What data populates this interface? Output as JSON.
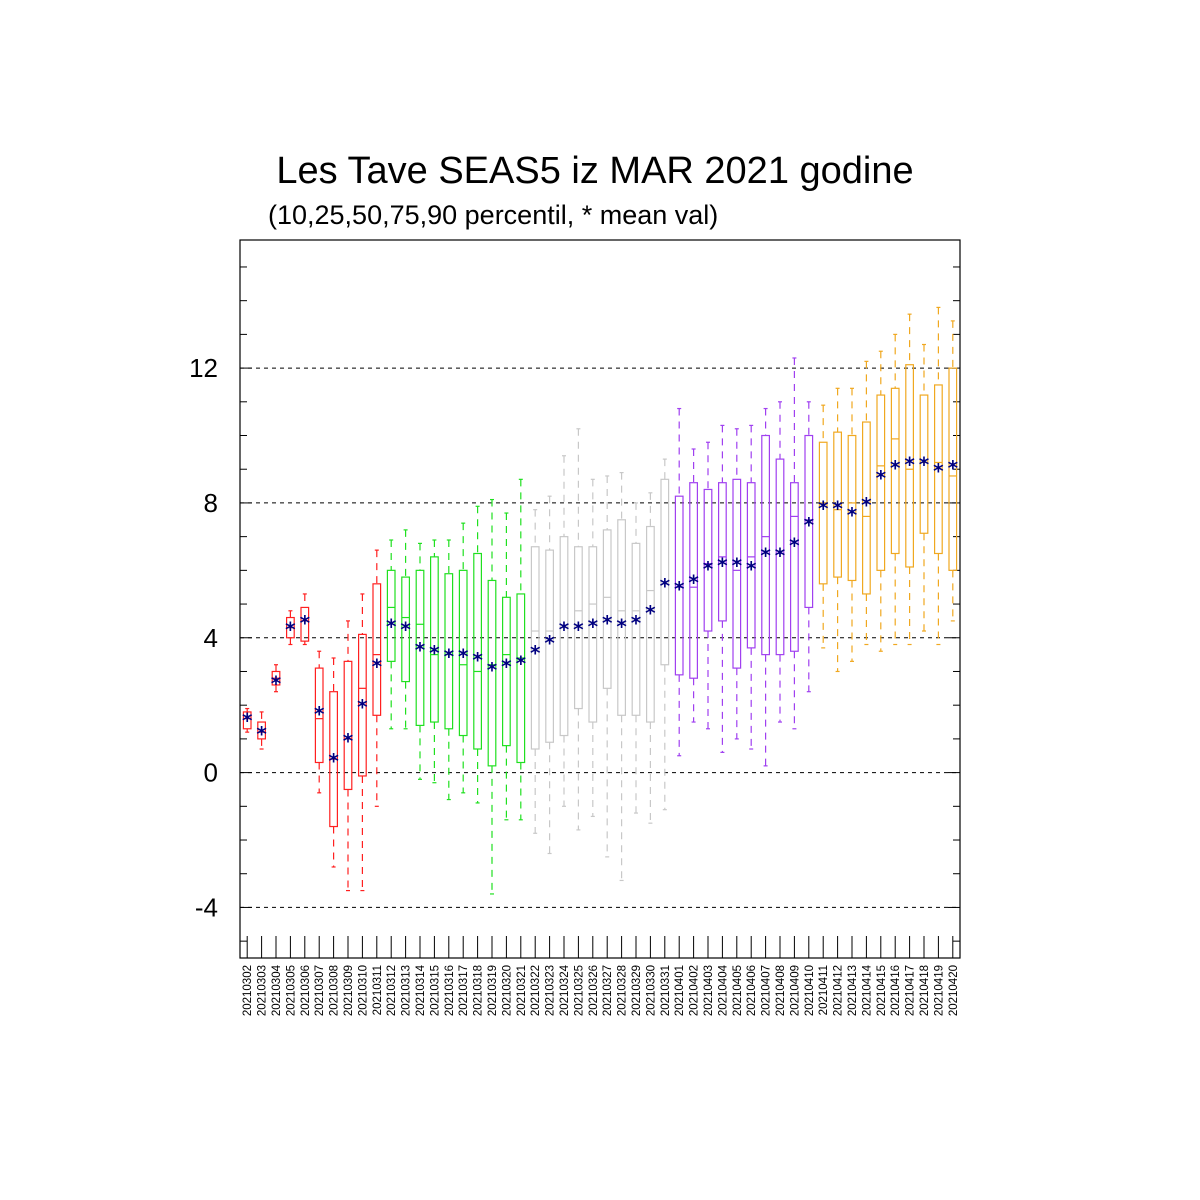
{
  "chart_data": {
    "type": "box",
    "title": "Les Tave SEAS5 iz MAR 2021 godine",
    "subtitle": "(10,25,50,75,90 percentil, * mean val)",
    "xlabel": "",
    "ylabel": "",
    "ylim": [
      -5.5,
      15.8
    ],
    "yticks": [
      -4,
      0,
      4,
      8,
      12
    ],
    "grid": "horizontal dashed at major ticks",
    "colors": {
      "red": "#ff2020",
      "green": "#20e020",
      "gray": "#c8c8c8",
      "purple": "#a040f0",
      "orange": "#f0a820",
      "mean_marker": "#000080"
    },
    "categories": [
      "20210302",
      "20210303",
      "20210304",
      "20210305",
      "20210306",
      "20210307",
      "20210308",
      "20210309",
      "20210310",
      "20210311",
      "20210312",
      "20210313",
      "20210314",
      "20210315",
      "20210316",
      "20210317",
      "20210318",
      "20210319",
      "20210320",
      "20210321",
      "20210322",
      "20210323",
      "20210324",
      "20210325",
      "20210326",
      "20210327",
      "20210328",
      "20210329",
      "20210330",
      "20210331",
      "20210401",
      "20210402",
      "20210403",
      "20210404",
      "20210405",
      "20210406",
      "20210407",
      "20210408",
      "20210409",
      "20210410",
      "20210411",
      "20210412",
      "20210413",
      "20210414",
      "20210415",
      "20210416",
      "20210417",
      "20210418",
      "20210419",
      "20210420"
    ],
    "boxes": [
      {
        "date": "20210302",
        "p10": 1.2,
        "p25": 1.3,
        "p50": 1.6,
        "p75": 1.8,
        "p90": 1.9,
        "mean": 1.6,
        "color": "red"
      },
      {
        "date": "20210303",
        "p10": 0.7,
        "p25": 1.0,
        "p50": 1.2,
        "p75": 1.5,
        "p90": 1.8,
        "mean": 1.2,
        "color": "red"
      },
      {
        "date": "20210304",
        "p10": 2.4,
        "p25": 2.6,
        "p50": 2.8,
        "p75": 3.0,
        "p90": 3.2,
        "mean": 2.7,
        "color": "red"
      },
      {
        "date": "20210305",
        "p10": 3.8,
        "p25": 4.0,
        "p50": 4.3,
        "p75": 4.6,
        "p90": 4.8,
        "mean": 4.3,
        "color": "red"
      },
      {
        "date": "20210306",
        "p10": 3.8,
        "p25": 3.9,
        "p50": 4.5,
        "p75": 4.9,
        "p90": 5.3,
        "mean": 4.5,
        "color": "red"
      },
      {
        "date": "20210307",
        "p10": -0.6,
        "p25": 0.3,
        "p50": 1.6,
        "p75": 3.1,
        "p90": 3.6,
        "mean": 1.8,
        "color": "red"
      },
      {
        "date": "20210308",
        "p10": -2.8,
        "p25": -1.6,
        "p50": 0.4,
        "p75": 2.4,
        "p90": 3.4,
        "mean": 0.4,
        "color": "red"
      },
      {
        "date": "20210309",
        "p10": -3.5,
        "p25": -0.5,
        "p50": 1.0,
        "p75": 3.3,
        "p90": 4.5,
        "mean": 1.0,
        "color": "red"
      },
      {
        "date": "20210310",
        "p10": -3.5,
        "p25": -0.1,
        "p50": 2.5,
        "p75": 4.1,
        "p90": 5.3,
        "mean": 2.0,
        "color": "red"
      },
      {
        "date": "20210311",
        "p10": -1.0,
        "p25": 1.7,
        "p50": 3.5,
        "p75": 5.6,
        "p90": 6.6,
        "mean": 3.2,
        "color": "red"
      },
      {
        "date": "20210312",
        "p10": 1.3,
        "p25": 3.3,
        "p50": 4.9,
        "p75": 6.0,
        "p90": 6.9,
        "mean": 4.4,
        "color": "green"
      },
      {
        "date": "20210313",
        "p10": 1.3,
        "p25": 2.7,
        "p50": 4.6,
        "p75": 5.8,
        "p90": 7.2,
        "mean": 4.3,
        "color": "green"
      },
      {
        "date": "20210314",
        "p10": -0.2,
        "p25": 1.4,
        "p50": 4.4,
        "p75": 6.0,
        "p90": 6.8,
        "mean": 3.7,
        "color": "green"
      },
      {
        "date": "20210315",
        "p10": -0.3,
        "p25": 1.5,
        "p50": 3.5,
        "p75": 6.4,
        "p90": 6.9,
        "mean": 3.6,
        "color": "green"
      },
      {
        "date": "20210316",
        "p10": -0.8,
        "p25": 1.3,
        "p50": 3.5,
        "p75": 5.9,
        "p90": 6.9,
        "mean": 3.5,
        "color": "green"
      },
      {
        "date": "20210317",
        "p10": -0.6,
        "p25": 1.1,
        "p50": 3.2,
        "p75": 6.0,
        "p90": 7.4,
        "mean": 3.5,
        "color": "green"
      },
      {
        "date": "20210318",
        "p10": -0.9,
        "p25": 0.7,
        "p50": 3.0,
        "p75": 6.5,
        "p90": 7.9,
        "mean": 3.4,
        "color": "green"
      },
      {
        "date": "20210319",
        "p10": -3.6,
        "p25": 0.2,
        "p50": 3.2,
        "p75": 5.7,
        "p90": 8.1,
        "mean": 3.1,
        "color": "green"
      },
      {
        "date": "20210320",
        "p10": -1.4,
        "p25": 0.8,
        "p50": 3.5,
        "p75": 5.2,
        "p90": 7.7,
        "mean": 3.2,
        "color": "green"
      },
      {
        "date": "20210321",
        "p10": -1.4,
        "p25": 0.3,
        "p50": 3.4,
        "p75": 5.3,
        "p90": 8.7,
        "mean": 3.3,
        "color": "green"
      },
      {
        "date": "20210322",
        "p10": -1.8,
        "p25": 0.7,
        "p50": 4.2,
        "p75": 6.7,
        "p90": 7.8,
        "mean": 3.6,
        "color": "gray"
      },
      {
        "date": "20210323",
        "p10": -2.4,
        "p25": 0.9,
        "p50": 4.2,
        "p75": 6.6,
        "p90": 8.2,
        "mean": 3.9,
        "color": "gray"
      },
      {
        "date": "20210324",
        "p10": -1.0,
        "p25": 1.1,
        "p50": 4.3,
        "p75": 7.0,
        "p90": 9.4,
        "mean": 4.3,
        "color": "gray"
      },
      {
        "date": "20210325",
        "p10": -1.7,
        "p25": 1.9,
        "p50": 4.8,
        "p75": 6.7,
        "p90": 10.2,
        "mean": 4.3,
        "color": "gray"
      },
      {
        "date": "20210326",
        "p10": -1.3,
        "p25": 1.5,
        "p50": 5.0,
        "p75": 6.7,
        "p90": 8.7,
        "mean": 4.4,
        "color": "gray"
      },
      {
        "date": "20210327",
        "p10": -2.5,
        "p25": 2.5,
        "p50": 5.2,
        "p75": 7.2,
        "p90": 8.8,
        "mean": 4.5,
        "color": "gray"
      },
      {
        "date": "20210328",
        "p10": -3.2,
        "p25": 1.7,
        "p50": 4.8,
        "p75": 7.5,
        "p90": 8.9,
        "mean": 4.4,
        "color": "gray"
      },
      {
        "date": "20210329",
        "p10": -1.2,
        "p25": 1.7,
        "p50": 4.8,
        "p75": 6.8,
        "p90": 8.0,
        "mean": 4.5,
        "color": "gray"
      },
      {
        "date": "20210330",
        "p10": -1.5,
        "p25": 1.5,
        "p50": 5.4,
        "p75": 7.3,
        "p90": 8.3,
        "mean": 4.8,
        "color": "gray"
      },
      {
        "date": "20210331",
        "p10": -1.1,
        "p25": 3.2,
        "p50": 5.6,
        "p75": 8.7,
        "p90": 9.3,
        "mean": 5.6,
        "color": "gray"
      },
      {
        "date": "20210401",
        "p10": 0.5,
        "p25": 2.9,
        "p50": 5.5,
        "p75": 8.2,
        "p90": 10.8,
        "mean": 5.5,
        "color": "purple"
      },
      {
        "date": "20210402",
        "p10": 1.5,
        "p25": 2.8,
        "p50": 5.5,
        "p75": 8.6,
        "p90": 9.6,
        "mean": 5.7,
        "color": "purple"
      },
      {
        "date": "20210403",
        "p10": 1.3,
        "p25": 4.2,
        "p50": 6.2,
        "p75": 8.4,
        "p90": 9.8,
        "mean": 6.1,
        "color": "purple"
      },
      {
        "date": "20210404",
        "p10": 0.6,
        "p25": 4.5,
        "p50": 6.4,
        "p75": 8.6,
        "p90": 10.3,
        "mean": 6.2,
        "color": "purple"
      },
      {
        "date": "20210405",
        "p10": 1.0,
        "p25": 3.1,
        "p50": 6.0,
        "p75": 8.7,
        "p90": 10.2,
        "mean": 6.2,
        "color": "purple"
      },
      {
        "date": "20210406",
        "p10": 0.7,
        "p25": 3.7,
        "p50": 6.4,
        "p75": 8.6,
        "p90": 10.3,
        "mean": 6.1,
        "color": "purple"
      },
      {
        "date": "20210407",
        "p10": 0.2,
        "p25": 3.5,
        "p50": 7.0,
        "p75": 10.0,
        "p90": 10.8,
        "mean": 6.5,
        "color": "purple"
      },
      {
        "date": "20210408",
        "p10": 1.5,
        "p25": 3.5,
        "p50": 6.5,
        "p75": 9.3,
        "p90": 11.0,
        "mean": 6.5,
        "color": "purple"
      },
      {
        "date": "20210409",
        "p10": 1.3,
        "p25": 3.6,
        "p50": 7.6,
        "p75": 8.6,
        "p90": 12.3,
        "mean": 6.8,
        "color": "purple"
      },
      {
        "date": "20210410",
        "p10": 2.4,
        "p25": 4.9,
        "p50": 7.5,
        "p75": 10.0,
        "p90": 11.0,
        "mean": 7.4,
        "color": "purple"
      },
      {
        "date": "20210411",
        "p10": 3.7,
        "p25": 5.6,
        "p50": 8.0,
        "p75": 9.8,
        "p90": 10.9,
        "mean": 7.9,
        "color": "orange"
      },
      {
        "date": "20210412",
        "p10": 3.0,
        "p25": 5.8,
        "p50": 7.8,
        "p75": 10.1,
        "p90": 11.4,
        "mean": 7.9,
        "color": "orange"
      },
      {
        "date": "20210413",
        "p10": 3.3,
        "p25": 5.7,
        "p50": 8.0,
        "p75": 10.0,
        "p90": 11.4,
        "mean": 7.7,
        "color": "orange"
      },
      {
        "date": "20210414",
        "p10": 3.8,
        "p25": 5.3,
        "p50": 7.6,
        "p75": 10.4,
        "p90": 12.2,
        "mean": 8.0,
        "color": "orange"
      },
      {
        "date": "20210415",
        "p10": 3.6,
        "p25": 6.0,
        "p50": 9.1,
        "p75": 11.2,
        "p90": 12.5,
        "mean": 8.8,
        "color": "orange"
      },
      {
        "date": "20210416",
        "p10": 3.8,
        "p25": 6.5,
        "p50": 9.9,
        "p75": 11.4,
        "p90": 13.0,
        "mean": 9.1,
        "color": "orange"
      },
      {
        "date": "20210417",
        "p10": 3.8,
        "p25": 6.1,
        "p50": 9.0,
        "p75": 12.1,
        "p90": 13.6,
        "mean": 9.2,
        "color": "orange"
      },
      {
        "date": "20210418",
        "p10": 4.2,
        "p25": 7.1,
        "p50": 9.2,
        "p75": 11.2,
        "p90": 12.7,
        "mean": 9.2,
        "color": "orange"
      },
      {
        "date": "20210419",
        "p10": 3.8,
        "p25": 6.5,
        "p50": 9.2,
        "p75": 11.5,
        "p90": 13.8,
        "mean": 9.0,
        "color": "orange"
      },
      {
        "date": "20210420",
        "p10": 4.5,
        "p25": 6.0,
        "p50": 8.8,
        "p75": 12.0,
        "p90": 13.4,
        "mean": 9.1,
        "color": "orange"
      }
    ]
  }
}
